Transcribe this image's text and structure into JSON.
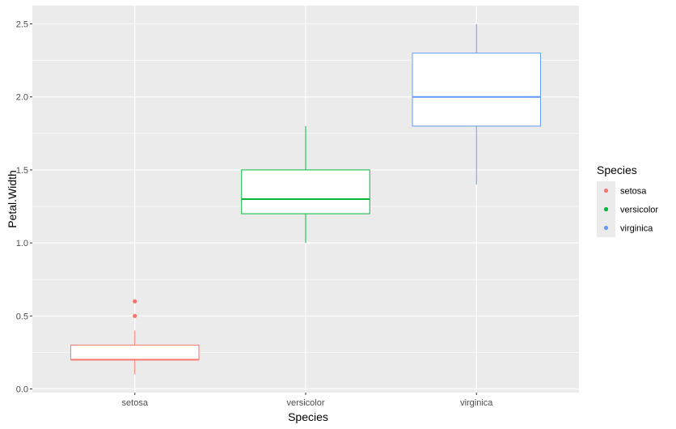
{
  "chart_data": {
    "type": "boxplot",
    "xlabel": "Species",
    "ylabel": "Petal.Width",
    "categories": [
      "setosa",
      "versicolor",
      "virginica"
    ],
    "ylim": [
      0,
      2.6
    ],
    "yticks": [
      0.0,
      0.5,
      1.0,
      1.5,
      2.0,
      2.5
    ],
    "ytick_labels": [
      "0.0",
      "0.5",
      "1.0",
      "1.5",
      "2.0",
      "2.5"
    ],
    "grid": true,
    "background": "#ebebeb",
    "legend": {
      "title": "Species",
      "placement": "right"
    },
    "series": [
      {
        "name": "setosa",
        "color": "#f8766d",
        "min": 0.1,
        "q1": 0.2,
        "median": 0.2,
        "q3": 0.3,
        "max": 0.4,
        "outliers": [
          0.5,
          0.6
        ]
      },
      {
        "name": "versicolor",
        "color": "#00ba38",
        "min": 1.0,
        "q1": 1.2,
        "median": 1.3,
        "q3": 1.5,
        "max": 1.8,
        "outliers": []
      },
      {
        "name": "virginica",
        "color": "#619cff",
        "min": 1.4,
        "q1": 1.8,
        "median": 2.0,
        "q3": 2.3,
        "max": 2.5,
        "outliers": []
      }
    ]
  }
}
